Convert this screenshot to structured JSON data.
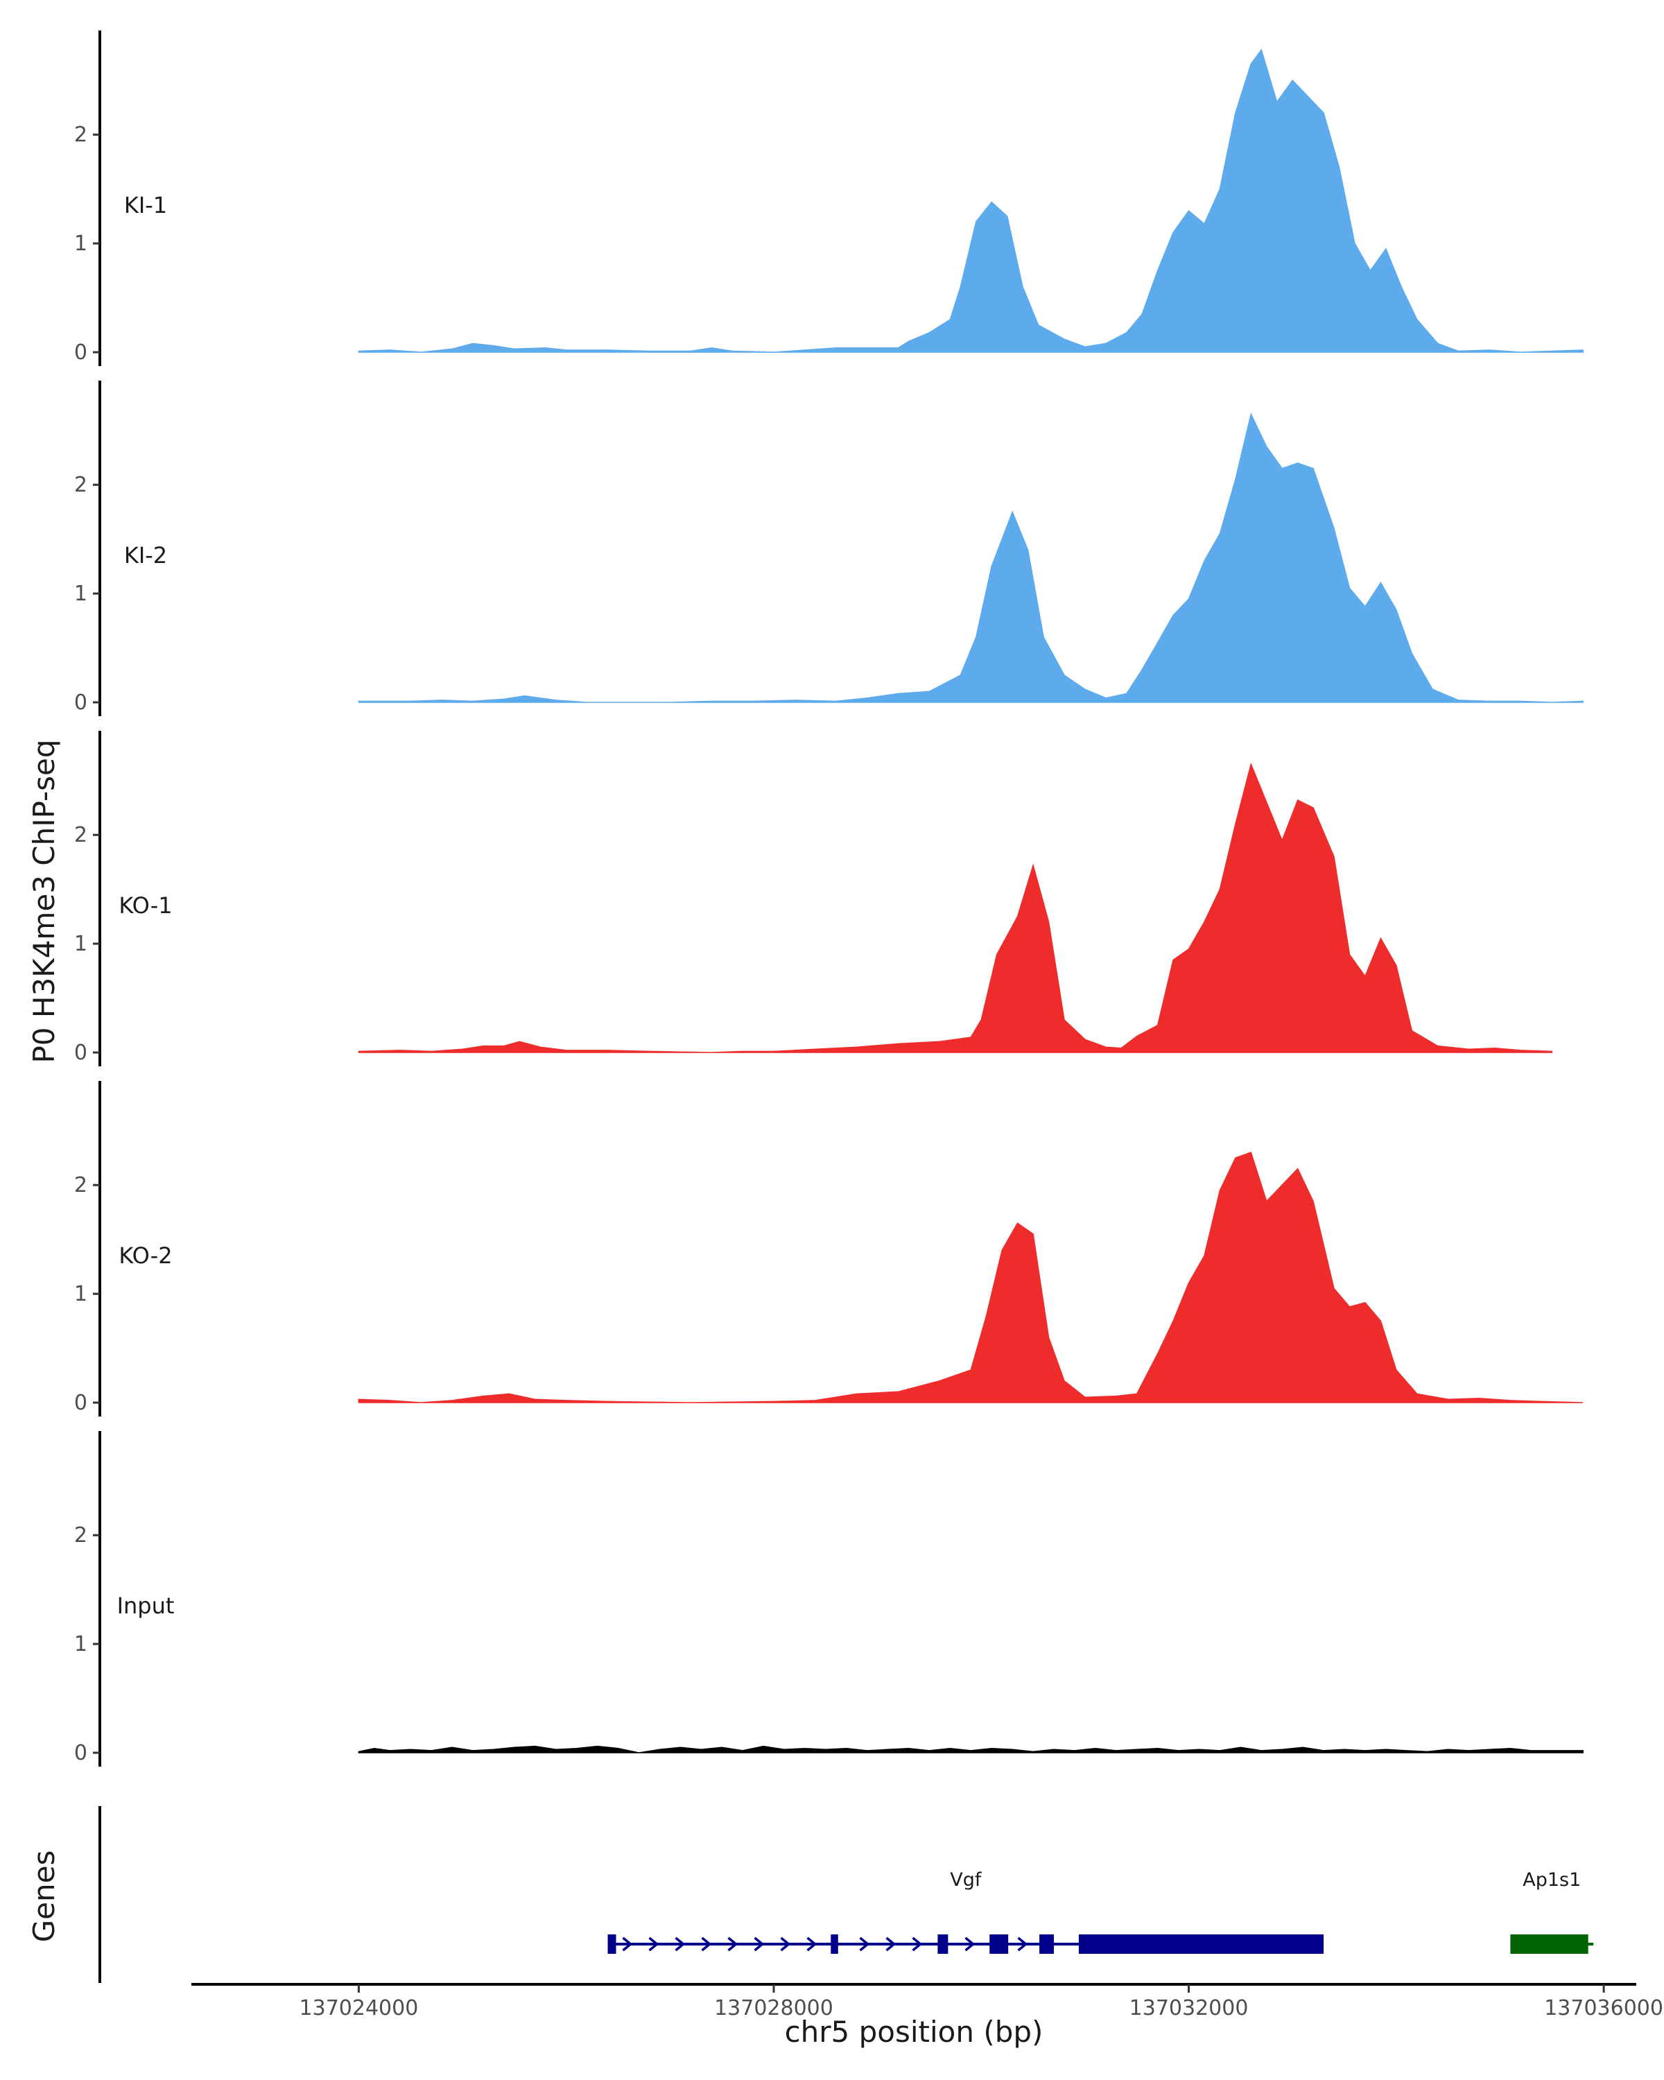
{
  "chart_data": {
    "type": "area",
    "y_axis_title": "P0 H3K4me3 ChIP-seq",
    "genes_axis_title": "Genes",
    "x_axis_title": "chr5 position (bp)",
    "xlim": [
      137022400,
      137036300
    ],
    "x_ticks": [
      137024000,
      137028000,
      137032000,
      137036000
    ],
    "x_tick_labels": [
      "137024000",
      "137028000",
      "137032000",
      "137036000"
    ],
    "ylim": [
      0,
      2.9
    ],
    "y_ticks": [
      0,
      1,
      2
    ],
    "y_tick_labels": [
      "0",
      "1",
      "2"
    ],
    "data_range": [
      137024000,
      137035800
    ],
    "tracks": [
      {
        "name": "KI-1",
        "color": "#5DABEC",
        "points": [
          [
            137024000,
            0.01
          ],
          [
            137024300,
            0.02
          ],
          [
            137024600,
            0.0
          ],
          [
            137024900,
            0.03
          ],
          [
            137025100,
            0.08
          ],
          [
            137025300,
            0.06
          ],
          [
            137025500,
            0.03
          ],
          [
            137025800,
            0.04
          ],
          [
            137026000,
            0.02
          ],
          [
            137026400,
            0.02
          ],
          [
            137026800,
            0.01
          ],
          [
            137027200,
            0.01
          ],
          [
            137027400,
            0.04
          ],
          [
            137027600,
            0.01
          ],
          [
            137028000,
            0.0
          ],
          [
            137028300,
            0.02
          ],
          [
            137028600,
            0.04
          ],
          [
            137028900,
            0.04
          ],
          [
            137029200,
            0.04
          ],
          [
            137029300,
            0.1
          ],
          [
            137029500,
            0.18
          ],
          [
            137029700,
            0.3
          ],
          [
            137029800,
            0.6
          ],
          [
            137029950,
            1.2
          ],
          [
            137030100,
            1.38
          ],
          [
            137030250,
            1.25
          ],
          [
            137030400,
            0.6
          ],
          [
            137030550,
            0.25
          ],
          [
            137030800,
            0.12
          ],
          [
            137031000,
            0.05
          ],
          [
            137031200,
            0.08
          ],
          [
            137031400,
            0.18
          ],
          [
            137031550,
            0.35
          ],
          [
            137031700,
            0.75
          ],
          [
            137031850,
            1.1
          ],
          [
            137032000,
            1.3
          ],
          [
            137032150,
            1.18
          ],
          [
            137032300,
            1.5
          ],
          [
            137032450,
            2.2
          ],
          [
            137032600,
            2.65
          ],
          [
            137032700,
            2.78
          ],
          [
            137032850,
            2.3
          ],
          [
            137033000,
            2.5
          ],
          [
            137033150,
            2.35
          ],
          [
            137033300,
            2.2
          ],
          [
            137033450,
            1.7
          ],
          [
            137033600,
            1.0
          ],
          [
            137033750,
            0.75
          ],
          [
            137033900,
            0.95
          ],
          [
            137034050,
            0.6
          ],
          [
            137034200,
            0.3
          ],
          [
            137034400,
            0.08
          ],
          [
            137034600,
            0.01
          ],
          [
            137034900,
            0.02
          ],
          [
            137035200,
            0.0
          ],
          [
            137035500,
            0.01
          ],
          [
            137035800,
            0.02
          ]
        ]
      },
      {
        "name": "KI-2",
        "color": "#5DABEC",
        "points": [
          [
            137024000,
            0.01
          ],
          [
            137024500,
            0.01
          ],
          [
            137024800,
            0.02
          ],
          [
            137025100,
            0.01
          ],
          [
            137025400,
            0.03
          ],
          [
            137025600,
            0.06
          ],
          [
            137025900,
            0.02
          ],
          [
            137026200,
            0.0
          ],
          [
            137026600,
            0.0
          ],
          [
            137027000,
            0.0
          ],
          [
            137027400,
            0.01
          ],
          [
            137027800,
            0.01
          ],
          [
            137028200,
            0.02
          ],
          [
            137028600,
            0.01
          ],
          [
            137028900,
            0.04
          ],
          [
            137029200,
            0.08
          ],
          [
            137029500,
            0.1
          ],
          [
            137029800,
            0.25
          ],
          [
            137029950,
            0.6
          ],
          [
            137030100,
            1.25
          ],
          [
            137030300,
            1.75
          ],
          [
            137030450,
            1.4
          ],
          [
            137030600,
            0.6
          ],
          [
            137030800,
            0.25
          ],
          [
            137031000,
            0.12
          ],
          [
            137031200,
            0.04
          ],
          [
            137031400,
            0.08
          ],
          [
            137031550,
            0.3
          ],
          [
            137031700,
            0.55
          ],
          [
            137031850,
            0.8
          ],
          [
            137032000,
            0.95
          ],
          [
            137032150,
            1.3
          ],
          [
            137032300,
            1.55
          ],
          [
            137032450,
            2.05
          ],
          [
            137032600,
            2.65
          ],
          [
            137032750,
            2.35
          ],
          [
            137032900,
            2.15
          ],
          [
            137033050,
            2.2
          ],
          [
            137033200,
            2.15
          ],
          [
            137033400,
            1.6
          ],
          [
            137033550,
            1.05
          ],
          [
            137033700,
            0.88
          ],
          [
            137033850,
            1.1
          ],
          [
            137034000,
            0.85
          ],
          [
            137034150,
            0.45
          ],
          [
            137034350,
            0.12
          ],
          [
            137034600,
            0.02
          ],
          [
            137034900,
            0.01
          ],
          [
            137035200,
            0.01
          ],
          [
            137035500,
            0.0
          ],
          [
            137035800,
            0.01
          ]
        ]
      },
      {
        "name": "KO-1",
        "color": "#EE2C2C",
        "points": [
          [
            137024000,
            0.01
          ],
          [
            137024400,
            0.02
          ],
          [
            137024700,
            0.01
          ],
          [
            137025000,
            0.03
          ],
          [
            137025200,
            0.06
          ],
          [
            137025400,
            0.06
          ],
          [
            137025550,
            0.1
          ],
          [
            137025750,
            0.05
          ],
          [
            137026000,
            0.02
          ],
          [
            137026400,
            0.02
          ],
          [
            137026800,
            0.01
          ],
          [
            137027400,
            0.0
          ],
          [
            137027700,
            0.01
          ],
          [
            137028000,
            0.01
          ],
          [
            137028400,
            0.03
          ],
          [
            137028800,
            0.05
          ],
          [
            137029200,
            0.08
          ],
          [
            137029600,
            0.1
          ],
          [
            137029900,
            0.14
          ],
          [
            137030000,
            0.3
          ],
          [
            137030150,
            0.9
          ],
          [
            137030350,
            1.25
          ],
          [
            137030500,
            1.72
          ],
          [
            137030650,
            1.2
          ],
          [
            137030800,
            0.3
          ],
          [
            137031000,
            0.12
          ],
          [
            137031200,
            0.05
          ],
          [
            137031350,
            0.04
          ],
          [
            137031500,
            0.15
          ],
          [
            137031700,
            0.25
          ],
          [
            137031850,
            0.85
          ],
          [
            137032000,
            0.95
          ],
          [
            137032150,
            1.2
          ],
          [
            137032300,
            1.5
          ],
          [
            137032450,
            2.1
          ],
          [
            137032600,
            2.65
          ],
          [
            137032750,
            2.3
          ],
          [
            137032900,
            1.95
          ],
          [
            137033050,
            2.32
          ],
          [
            137033200,
            2.25
          ],
          [
            137033400,
            1.8
          ],
          [
            137033550,
            0.9
          ],
          [
            137033700,
            0.7
          ],
          [
            137033850,
            1.05
          ],
          [
            137034000,
            0.8
          ],
          [
            137034150,
            0.2
          ],
          [
            137034400,
            0.06
          ],
          [
            137034700,
            0.03
          ],
          [
            137034950,
            0.04
          ],
          [
            137035200,
            0.02
          ],
          [
            137035500,
            0.01
          ]
        ]
      },
      {
        "name": "KO-2",
        "color": "#EE2C2C",
        "points": [
          [
            137024000,
            0.03
          ],
          [
            137024300,
            0.02
          ],
          [
            137024600,
            0.0
          ],
          [
            137024900,
            0.02
          ],
          [
            137025200,
            0.06
          ],
          [
            137025450,
            0.08
          ],
          [
            137025700,
            0.03
          ],
          [
            137026000,
            0.02
          ],
          [
            137026400,
            0.01
          ],
          [
            137027200,
            0.0
          ],
          [
            137028000,
            0.01
          ],
          [
            137028400,
            0.02
          ],
          [
            137028800,
            0.08
          ],
          [
            137029200,
            0.1
          ],
          [
            137029600,
            0.2
          ],
          [
            137029900,
            0.3
          ],
          [
            137030050,
            0.8
          ],
          [
            137030200,
            1.4
          ],
          [
            137030350,
            1.65
          ],
          [
            137030500,
            1.55
          ],
          [
            137030650,
            0.6
          ],
          [
            137030800,
            0.2
          ],
          [
            137031000,
            0.05
          ],
          [
            137031300,
            0.06
          ],
          [
            137031500,
            0.08
          ],
          [
            137031700,
            0.45
          ],
          [
            137031850,
            0.75
          ],
          [
            137032000,
            1.1
          ],
          [
            137032150,
            1.35
          ],
          [
            137032300,
            1.95
          ],
          [
            137032450,
            2.25
          ],
          [
            137032600,
            2.3
          ],
          [
            137032750,
            1.85
          ],
          [
            137032900,
            2.0
          ],
          [
            137033050,
            2.15
          ],
          [
            137033200,
            1.85
          ],
          [
            137033400,
            1.05
          ],
          [
            137033550,
            0.88
          ],
          [
            137033700,
            0.92
          ],
          [
            137033850,
            0.75
          ],
          [
            137034000,
            0.3
          ],
          [
            137034200,
            0.08
          ],
          [
            137034500,
            0.03
          ],
          [
            137034800,
            0.04
          ],
          [
            137035100,
            0.02
          ],
          [
            137035400,
            0.01
          ],
          [
            137035800,
            0.0
          ]
        ]
      },
      {
        "name": "Input",
        "color": "#000000",
        "points": [
          [
            137024000,
            0.01
          ],
          [
            137024150,
            0.04
          ],
          [
            137024300,
            0.02
          ],
          [
            137024500,
            0.03
          ],
          [
            137024700,
            0.02
          ],
          [
            137024900,
            0.05
          ],
          [
            137025100,
            0.02
          ],
          [
            137025300,
            0.03
          ],
          [
            137025500,
            0.05
          ],
          [
            137025700,
            0.06
          ],
          [
            137025900,
            0.03
          ],
          [
            137026100,
            0.04
          ],
          [
            137026300,
            0.06
          ],
          [
            137026500,
            0.04
          ],
          [
            137026700,
            0.0
          ],
          [
            137026900,
            0.03
          ],
          [
            137027100,
            0.05
          ],
          [
            137027300,
            0.03
          ],
          [
            137027500,
            0.05
          ],
          [
            137027700,
            0.02
          ],
          [
            137027900,
            0.06
          ],
          [
            137028100,
            0.03
          ],
          [
            137028300,
            0.04
          ],
          [
            137028500,
            0.03
          ],
          [
            137028700,
            0.04
          ],
          [
            137028900,
            0.02
          ],
          [
            137029100,
            0.03
          ],
          [
            137029300,
            0.04
          ],
          [
            137029500,
            0.02
          ],
          [
            137029700,
            0.04
          ],
          [
            137029900,
            0.02
          ],
          [
            137030100,
            0.04
          ],
          [
            137030300,
            0.03
          ],
          [
            137030500,
            0.01
          ],
          [
            137030700,
            0.03
          ],
          [
            137030900,
            0.02
          ],
          [
            137031100,
            0.04
          ],
          [
            137031300,
            0.02
          ],
          [
            137031500,
            0.03
          ],
          [
            137031700,
            0.04
          ],
          [
            137031900,
            0.02
          ],
          [
            137032100,
            0.03
          ],
          [
            137032300,
            0.02
          ],
          [
            137032500,
            0.05
          ],
          [
            137032700,
            0.02
          ],
          [
            137032900,
            0.03
          ],
          [
            137033100,
            0.05
          ],
          [
            137033300,
            0.02
          ],
          [
            137033500,
            0.03
          ],
          [
            137033700,
            0.02
          ],
          [
            137033900,
            0.03
          ],
          [
            137034100,
            0.02
          ],
          [
            137034300,
            0.01
          ],
          [
            137034500,
            0.03
          ],
          [
            137034700,
            0.02
          ],
          [
            137034900,
            0.03
          ],
          [
            137035100,
            0.04
          ],
          [
            137035300,
            0.02
          ],
          [
            137035500,
            0.02
          ],
          [
            137035800,
            0.02
          ]
        ]
      }
    ],
    "genes": [
      {
        "name": "Vgf",
        "color": "#00008B",
        "start": 137026400,
        "end": 137033300,
        "strand": "+",
        "exons": [
          [
            137026400,
            137026480
          ],
          [
            137028550,
            137028620
          ],
          [
            137029580,
            137029680
          ],
          [
            137030080,
            137030260
          ],
          [
            137030560,
            137030700
          ],
          [
            137030940,
            137033300
          ]
        ]
      },
      {
        "name": "Ap1s1",
        "color": "#006400",
        "start": 137035100,
        "end": 137035900,
        "strand": "-",
        "exons": [
          [
            137035100,
            137035850
          ]
        ]
      }
    ]
  }
}
